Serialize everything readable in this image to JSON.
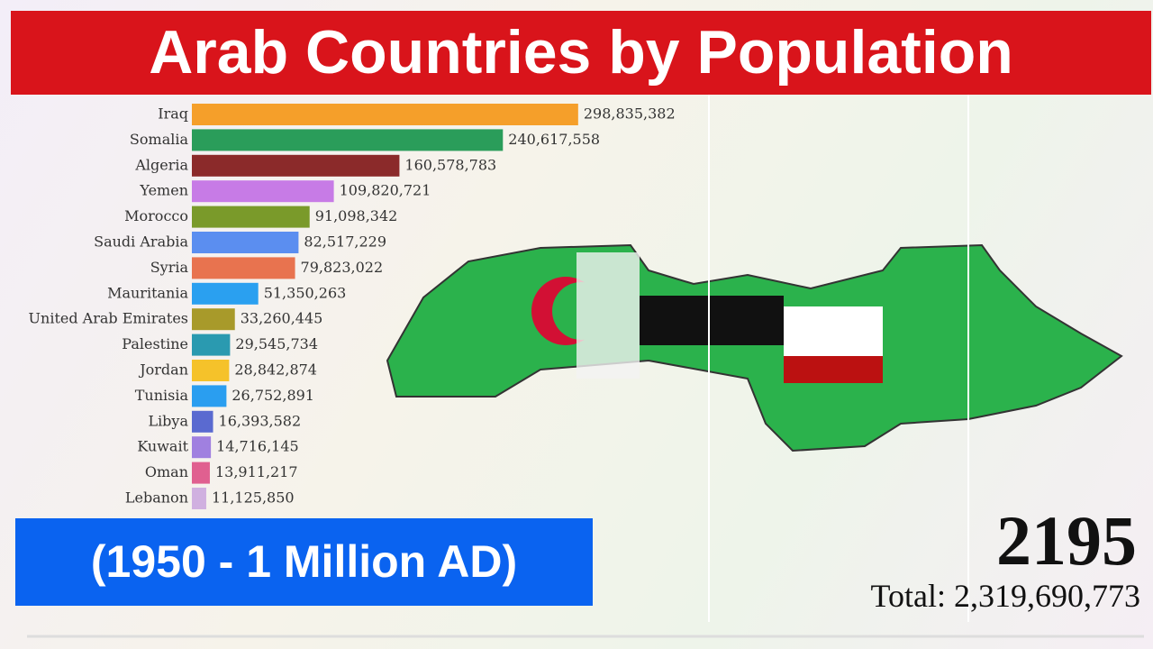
{
  "chart_data": {
    "type": "bar",
    "orientation": "horizontal",
    "title": "Arab Countries by Population",
    "subtitle": "(1950 - 1 Million AD)",
    "year": "2195",
    "total": "Total: 2,319,690,773",
    "categories": [
      "Iraq",
      "Somalia",
      "Algeria",
      "Yemen",
      "Morocco",
      "Saudi Arabia",
      "Syria",
      "Mauritania",
      "United Arab Emirates",
      "Palestine",
      "Jordan",
      "Tunisia",
      "Libya",
      "Kuwait",
      "Oman",
      "Lebanon"
    ],
    "values": [
      298835382,
      240617558,
      160578783,
      109820721,
      91098342,
      82517229,
      79823022,
      51350263,
      33260445,
      29545734,
      28842874,
      26752891,
      16393582,
      14716145,
      13911217,
      11125850
    ],
    "value_labels": [
      "298,835,382",
      "240,617,558",
      "160,578,783",
      "109,820,721",
      "91,098,342",
      "82,517,229",
      "79,823,022",
      "51,350,263",
      "33,260,445",
      "29,545,734",
      "28,842,874",
      "26,752,891",
      "16,393,582",
      "14,716,145",
      "13,911,217",
      "11,125,850"
    ],
    "colors": [
      "#f59f2a",
      "#2a9d5a",
      "#8b2a2a",
      "#c77be6",
      "#7a9a2a",
      "#5b8ef0",
      "#e8734f",
      "#2aa0f0",
      "#a89a2a",
      "#2a9ab0",
      "#f5c22a",
      "#2a9ef0",
      "#5a6ad0",
      "#a080e0",
      "#e06090",
      "#d0b0e0"
    ],
    "xlim": [
      0,
      400000000
    ]
  }
}
